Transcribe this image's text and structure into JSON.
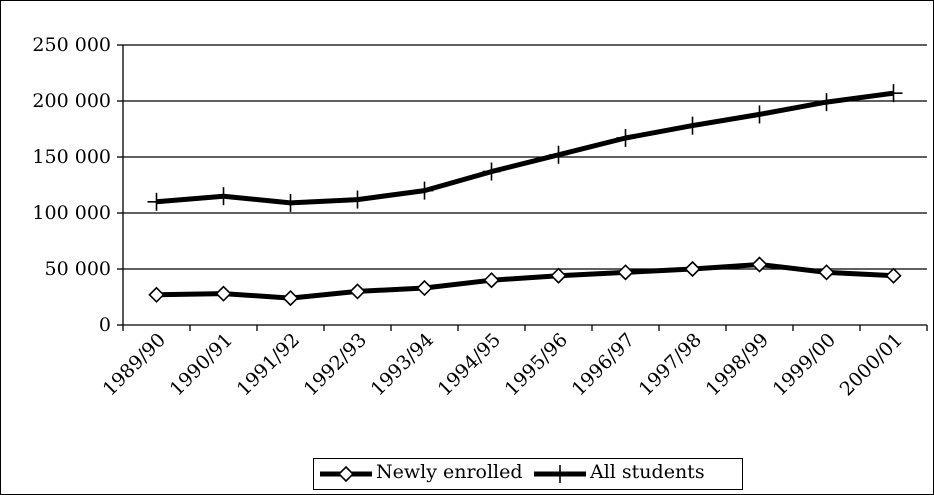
{
  "chart_data": {
    "type": "line",
    "categories": [
      "1989/90",
      "1990/91",
      "1991/92",
      "1992/93",
      "1993/94",
      "1994/95",
      "1995/96",
      "1996/97",
      "1997/98",
      "1998/99",
      "1999/00",
      "2000/01"
    ],
    "series": [
      {
        "name": "Newly enrolled",
        "marker": "diamond",
        "values": [
          27000,
          28000,
          24000,
          30000,
          33000,
          40000,
          44000,
          47000,
          50000,
          54000,
          47000,
          44000
        ]
      },
      {
        "name": "All students",
        "marker": "plus",
        "values": [
          110000,
          115000,
          109000,
          112000,
          120000,
          137000,
          152000,
          167000,
          178000,
          188000,
          199000,
          207000
        ]
      }
    ],
    "ylim": [
      0,
      250000
    ],
    "yticks": [
      0,
      50000,
      100000,
      150000,
      200000,
      250000
    ],
    "ytick_labels": [
      "0",
      "50 000",
      "100 000",
      "150 000",
      "200 000",
      "250 000"
    ],
    "grid": "horizontal",
    "legend": "bottom",
    "colors": {
      "line": "#000000",
      "grid": "#000000",
      "background": "#ffffff"
    }
  }
}
